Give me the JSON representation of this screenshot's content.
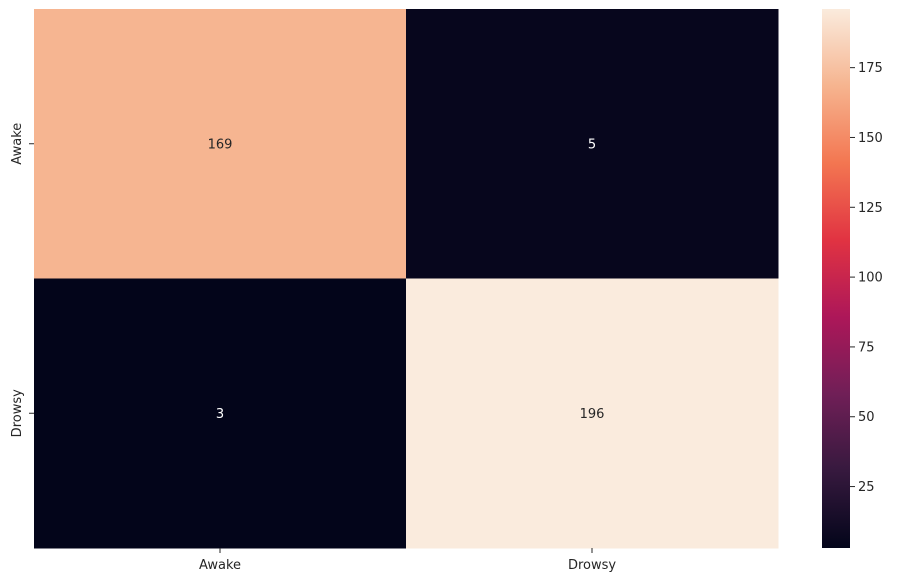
{
  "chart_data": {
    "type": "heatmap",
    "title": "",
    "xlabel": "",
    "ylabel": "",
    "x_categories": [
      "Awake",
      "Drowsy"
    ],
    "y_categories": [
      "Awake",
      "Drowsy"
    ],
    "values": [
      [
        169,
        5
      ],
      [
        3,
        196
      ]
    ],
    "colorbar": {
      "min": 3,
      "max": 196,
      "ticks": [
        25,
        50,
        75,
        100,
        125,
        150,
        175
      ],
      "colormap": [
        "#03051a",
        "#36193e",
        "#701f57",
        "#ad1759",
        "#e13342",
        "#f37651",
        "#f6b48f",
        "#faebdd"
      ],
      "placement": "right"
    },
    "grid": false,
    "annotations_shown": true
  }
}
